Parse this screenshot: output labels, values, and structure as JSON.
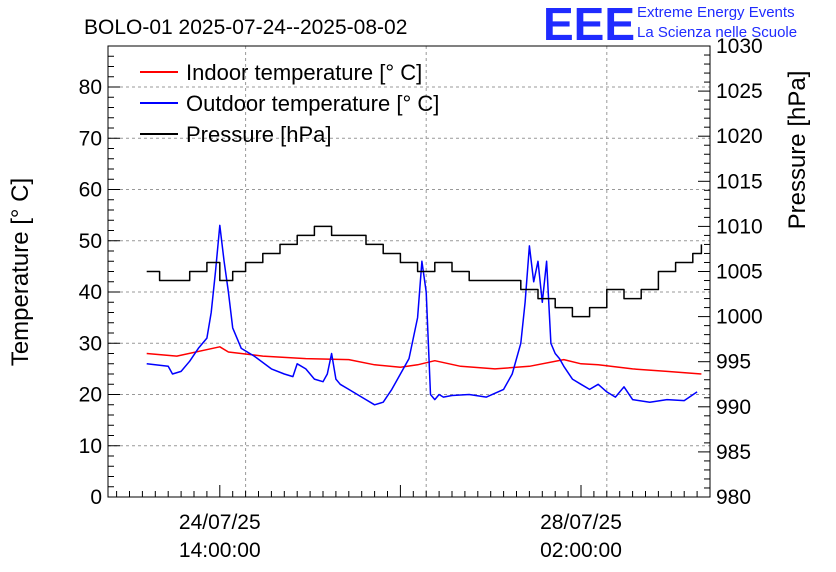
{
  "logo": {
    "mark": "EEE",
    "line1": "Extreme Energy Events",
    "line2": "La Scienza nelle Scuole"
  },
  "chart_data": {
    "type": "line",
    "title": "BOLO-01 2025-07-24--2025-08-02",
    "ylabel_left": "Temperature [° C]",
    "ylabel_right": "Pressure [hPa]",
    "ylim_left": [
      0,
      88
    ],
    "ylim_right": [
      980,
      1030
    ],
    "yticks_left": [
      0,
      10,
      20,
      30,
      40,
      50,
      60,
      70,
      80
    ],
    "yticks_right": [
      980,
      985,
      990,
      995,
      1000,
      1005,
      1010,
      1015,
      1020,
      1025,
      1030
    ],
    "xlim_hours": [
      -26,
      114
    ],
    "xtick_labels": [
      {
        "hour": 0,
        "date": "24/07/25",
        "time": "14:00:00"
      },
      {
        "hour": 84,
        "date": "28/07/25",
        "time": "02:00:00"
      }
    ],
    "grid": true,
    "legend_position": "top-left",
    "colors": {
      "indoor": "#ff0000",
      "outdoor": "#0000ff",
      "pressure": "#000000"
    },
    "series": [
      {
        "name": "Indoor temperature [° C]",
        "axis": "left",
        "x": [
          -17,
          -10,
          0,
          2,
          10,
          20,
          30,
          36,
          42,
          46,
          50,
          56,
          64,
          72,
          80,
          84,
          88,
          96,
          104,
          112
        ],
        "y": [
          28,
          27.5,
          29.3,
          28.3,
          27.5,
          27,
          26.8,
          25.8,
          25.3,
          25.8,
          26.6,
          25.5,
          25,
          25.5,
          26.8,
          26,
          25.8,
          25,
          24.5,
          24
        ]
      },
      {
        "name": "Outdoor temperature [° C]",
        "axis": "left",
        "x": [
          -17,
          -12,
          -11,
          -9,
          -7,
          -5,
          -3,
          -2,
          -1,
          0,
          1,
          2,
          3,
          5,
          8,
          12,
          15,
          17,
          18,
          20,
          22,
          24,
          25,
          26,
          27,
          28,
          30,
          33,
          36,
          38,
          40,
          42,
          44,
          46,
          47,
          48,
          49,
          50,
          51,
          52,
          54,
          58,
          62,
          66,
          68,
          70,
          71,
          72,
          73,
          74,
          75,
          76,
          77,
          78,
          79,
          80,
          82,
          84,
          86,
          88,
          90,
          92,
          94,
          96,
          100,
          104,
          108,
          111
        ],
        "y": [
          26,
          25.5,
          24,
          24.5,
          26.5,
          29,
          31,
          36,
          44,
          53,
          46,
          40,
          33,
          29,
          27.5,
          25,
          24,
          23.5,
          26,
          25,
          23,
          22.5,
          24,
          28,
          23,
          22,
          21,
          19.5,
          18,
          18.5,
          21,
          24,
          27,
          35,
          46,
          40,
          20,
          19,
          20,
          19.5,
          19.8,
          20,
          19.5,
          21,
          24,
          30,
          38,
          49,
          42,
          46,
          38,
          46,
          30,
          28,
          27,
          25.5,
          23,
          22,
          21,
          22,
          20.5,
          19.5,
          21.5,
          19,
          18.5,
          19,
          18.8,
          20.5
        ]
      },
      {
        "name": "Pressure [hPa]",
        "axis": "right",
        "x": [
          -17,
          -14,
          -10,
          -7,
          -3,
          0,
          3,
          6,
          10,
          14,
          18,
          22,
          26,
          30,
          34,
          38,
          42,
          46,
          50,
          54,
          58,
          62,
          66,
          70,
          74,
          78,
          82,
          86,
          90,
          94,
          98,
          102,
          106,
          110,
          112
        ],
        "y": [
          1005,
          1004,
          1004,
          1005,
          1006,
          1004,
          1005,
          1006,
          1007,
          1008,
          1009,
          1010,
          1009,
          1009,
          1008,
          1007,
          1006,
          1005,
          1006,
          1005,
          1004,
          1004,
          1004,
          1003,
          1002,
          1001,
          1000,
          1001,
          1003,
          1002,
          1003,
          1005,
          1006,
          1007,
          1008
        ]
      }
    ]
  }
}
